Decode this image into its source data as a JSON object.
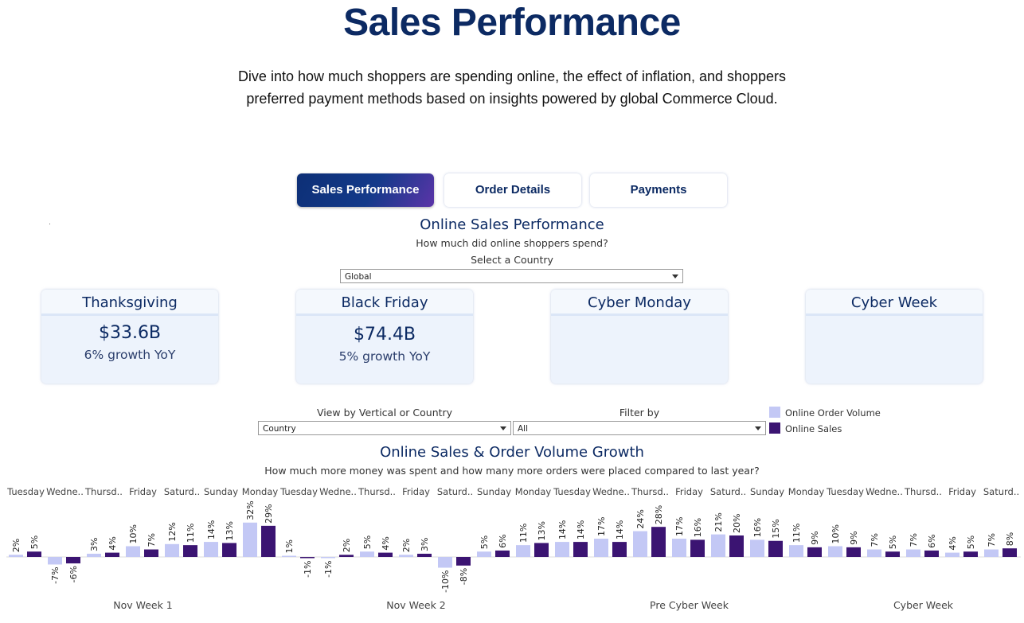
{
  "header": {
    "title": "Sales Performance",
    "intro": "Dive into how much shoppers are spending online, the effect of inflation, and shoppers preferred payment methods based on insights powered by global Commerce Cloud."
  },
  "tabs": [
    {
      "label": "Sales Performance",
      "active": true
    },
    {
      "label": "Order Details",
      "active": false
    },
    {
      "label": "Payments",
      "active": false
    }
  ],
  "online_sales": {
    "title": "Online Sales Performance",
    "subtitle": "How much did online shoppers spend?",
    "country_label": "Select a Country",
    "country_value": "Global"
  },
  "cards": [
    {
      "name": "Thanksgiving",
      "value": "$33.6B",
      "growth": "6%  growth YoY"
    },
    {
      "name": "Black Friday",
      "value": "$74.4B",
      "growth": "5% growth YoY"
    },
    {
      "name": "Cyber Monday",
      "value": "",
      "growth": ""
    },
    {
      "name": "Cyber Week",
      "value": "",
      "growth": ""
    }
  ],
  "filters": {
    "view_label": "View by Vertical or Country",
    "view_value": "Country",
    "filter_label": "Filter by",
    "filter_value": "All"
  },
  "legend": [
    {
      "label": "Online Order Volume",
      "color": "#c3c8f5"
    },
    {
      "label": "Online Sales",
      "color": "#3b1472"
    }
  ],
  "growth_chart": {
    "title": "Online Sales & Order Volume Growth",
    "subtitle": "How much more money was spent and how many more orders were placed compared to last year?"
  },
  "chart_data": {
    "type": "bar",
    "categories": [
      "Tuesday",
      "Wedne..",
      "Thursd..",
      "Friday",
      "Saturd..",
      "Sunday",
      "Monday",
      "Tuesday",
      "Wedne..",
      "Thursd..",
      "Friday",
      "Saturd..",
      "Sunday",
      "Monday",
      "Tuesday",
      "Wedne..",
      "Thursd..",
      "Friday",
      "Saturd..",
      "Sunday",
      "Monday",
      "Tuesday",
      "Wedne..",
      "Thursd..",
      "Friday",
      "Saturd.."
    ],
    "groups": [
      {
        "label": "Nov Week 1",
        "count": 7
      },
      {
        "label": "Nov Week 2",
        "count": 7
      },
      {
        "label": "Pre Cyber Week",
        "count": 7
      },
      {
        "label": "Cyber Week",
        "count": 5
      }
    ],
    "series": [
      {
        "name": "Online Order Volume",
        "color": "#c3c8f5",
        "values": [
          2,
          -7,
          3,
          10,
          12,
          14,
          32,
          1,
          -1,
          5,
          2,
          -10,
          5,
          11,
          14,
          17,
          24,
          17,
          21,
          16,
          11,
          10,
          7,
          7,
          4,
          7
        ],
        "labels": [
          "2%",
          "-7%",
          "3%",
          "10%",
          "12%",
          "14%",
          "32%",
          "1%",
          "-1%",
          "5%",
          "2%",
          "-10%",
          "5%",
          "11%",
          "14%",
          "17%",
          "24%",
          "17%",
          "21%",
          "16%",
          "11%",
          "10%",
          "7%",
          "7%",
          "4%",
          "7%"
        ]
      },
      {
        "name": "Online Sales",
        "color": "#3b1472",
        "values": [
          5,
          -6,
          4,
          7,
          11,
          13,
          29,
          -1,
          2,
          4,
          3,
          -8,
          6,
          13,
          14,
          14,
          28,
          16,
          20,
          15,
          9,
          9,
          5,
          6,
          5,
          8
        ],
        "labels": [
          "5%",
          "-6%",
          "4%",
          "7%",
          "11%",
          "13%",
          "29%",
          "-1%",
          "2%",
          "4%",
          "3%",
          "-8%",
          "6%",
          "13%",
          "14%",
          "14%",
          "28%",
          "16%",
          "20%",
          "15%",
          "9%",
          "9%",
          "5%",
          "6%",
          "5%",
          "8%"
        ]
      }
    ]
  }
}
